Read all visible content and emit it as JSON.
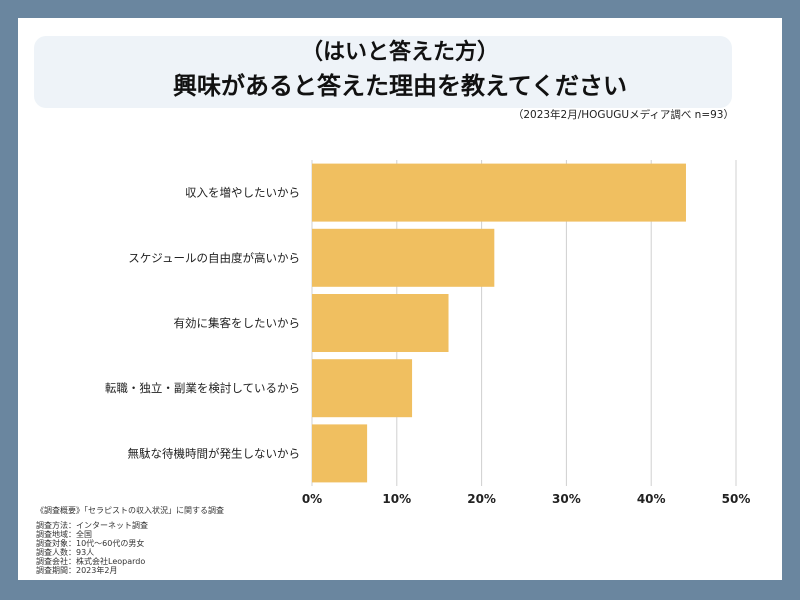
{
  "header": {
    "title_line1": "（はいと答えた方）",
    "title_line2": "興味があると答えた理由を教えてください",
    "source": "（2023年2月/HOGUGUメディア調べ n=93）"
  },
  "chart_data": {
    "type": "bar",
    "orientation": "horizontal",
    "categories": [
      "収入を増やしたいから",
      "スケジュールの自由度が高いから",
      "有効に集客をしたいから",
      "転職・独立・副業を検討しているから",
      "無駄な待機時間が発生しないから"
    ],
    "values": [
      44.1,
      21.5,
      16.1,
      11.8,
      6.5
    ],
    "unit": "%",
    "xlim": [
      0,
      50
    ],
    "xticks": [
      "0%",
      "10%",
      "20%",
      "30%",
      "40%",
      "50%"
    ],
    "grid": true,
    "bar_color": "#f0bf60",
    "grid_color": "#d0d0d0"
  },
  "footer": {
    "survey_title": "《調査概要》「セラピストの収入状況」に関する調査",
    "details": [
      "調査方法：インターネット調査",
      "調査地域：全国",
      "調査対象：10代～60代の男女",
      "調査人数：93人",
      "調査会社：株式会社Leopardo",
      "調査期間：2023年2月"
    ]
  },
  "colors": {
    "frame": "#6a869f",
    "title_box": "#eef3f8"
  }
}
